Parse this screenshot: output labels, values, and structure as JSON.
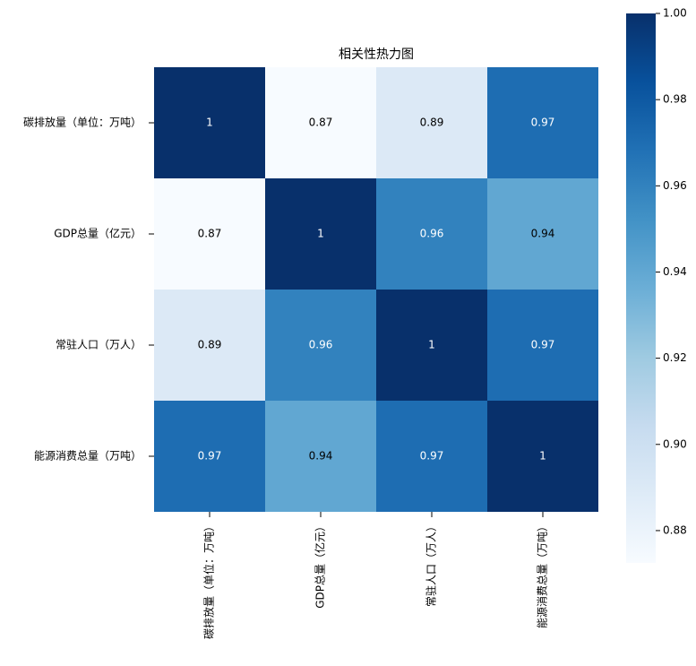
{
  "chart_data": {
    "type": "heatmap",
    "title": "相关性热力图",
    "rows": [
      "碳排放量（单位：万吨）",
      "GDP总量（亿元）",
      "常驻人口（万人）",
      "能源消费总量（万吨）"
    ],
    "columns": [
      "碳排放量（单位：万吨）",
      "GDP总量（亿元）",
      "常驻人口（万人）",
      "能源消费总量（万吨）"
    ],
    "values": [
      [
        1,
        0.8725,
        0.89,
        0.97
      ],
      [
        0.8725,
        1,
        0.96,
        0.94
      ],
      [
        0.89,
        0.96,
        1,
        0.97
      ],
      [
        0.97,
        0.94,
        0.97,
        1
      ]
    ],
    "value_labels": [
      [
        "1",
        "0.87",
        "0.89",
        "0.97"
      ],
      [
        "0.87",
        "1",
        "0.96",
        "0.94"
      ],
      [
        "0.89",
        "0.96",
        "1",
        "0.97"
      ],
      [
        "0.97",
        "0.94",
        "0.97",
        "1"
      ]
    ],
    "colormap": "Blues",
    "colorbar_lim": [
      0.8725,
      1
    ],
    "colorbar_ticks": [
      {
        "value": 0.88,
        "label": "0.88"
      },
      {
        "value": 0.9,
        "label": "0.90"
      },
      {
        "value": 0.92,
        "label": "0.92"
      },
      {
        "value": 0.94,
        "label": "0.94"
      },
      {
        "value": 0.96,
        "label": "0.96"
      },
      {
        "value": 0.98,
        "label": "0.98"
      },
      {
        "value": 1,
        "label": "1.00"
      }
    ]
  }
}
